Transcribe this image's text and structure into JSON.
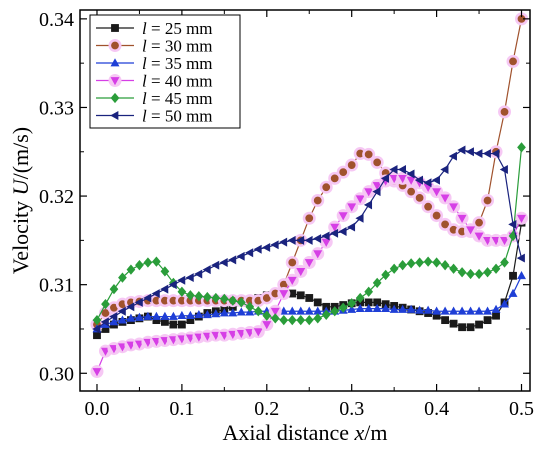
{
  "chart_data": {
    "type": "line",
    "title": "",
    "xlabel": {
      "prefix": "Axial distance ",
      "var": "x",
      "suffix": "/m"
    },
    "ylabel": {
      "prefix": "Velocity ",
      "var": "U",
      "suffix": "/(m/s)"
    },
    "xlim": [
      -0.02,
      0.51
    ],
    "ylim": [
      0.298,
      0.341
    ],
    "xticks": [
      0.0,
      0.1,
      0.2,
      0.3,
      0.4,
      0.5
    ],
    "xtick_labels": [
      "0.0",
      "0.1",
      "0.2",
      "0.3",
      "0.4",
      "0.5"
    ],
    "yticks": [
      0.3,
      0.31,
      0.32,
      0.33,
      0.34
    ],
    "ytick_labels": [
      "0.30",
      "0.31",
      "0.32",
      "0.33",
      "0.34"
    ],
    "grid": false,
    "legend_position": "top-left",
    "series": [
      {
        "name": "l = 25 mm",
        "var": "l",
        "value_text": " = 25 mm",
        "color": "#1a1a1a",
        "marker": "square",
        "highlight": false,
        "x": [
          0.0,
          0.01,
          0.02,
          0.03,
          0.04,
          0.05,
          0.06,
          0.07,
          0.08,
          0.09,
          0.1,
          0.11,
          0.12,
          0.13,
          0.14,
          0.15,
          0.16,
          0.17,
          0.18,
          0.19,
          0.2,
          0.21,
          0.22,
          0.23,
          0.24,
          0.25,
          0.26,
          0.27,
          0.28,
          0.29,
          0.3,
          0.31,
          0.32,
          0.33,
          0.34,
          0.35,
          0.36,
          0.37,
          0.38,
          0.39,
          0.4,
          0.41,
          0.42,
          0.43,
          0.44,
          0.45,
          0.46,
          0.47,
          0.48,
          0.49,
          0.5
        ],
        "y": [
          0.3043,
          0.305,
          0.3055,
          0.3058,
          0.306,
          0.3062,
          0.3064,
          0.306,
          0.3058,
          0.3055,
          0.3055,
          0.306,
          0.3064,
          0.3068,
          0.307,
          0.3072,
          0.3075,
          0.308,
          0.3082,
          0.3085,
          0.3088,
          0.3089,
          0.309,
          0.309,
          0.3088,
          0.3085,
          0.308,
          0.3075,
          0.3075,
          0.3077,
          0.3079,
          0.308,
          0.308,
          0.308,
          0.3078,
          0.3076,
          0.3074,
          0.3072,
          0.307,
          0.3068,
          0.3065,
          0.306,
          0.3056,
          0.3052,
          0.3052,
          0.3055,
          0.306,
          0.3065,
          0.308,
          0.311,
          0.317
        ]
      },
      {
        "name": "l = 30 mm",
        "var": "l",
        "value_text": " = 30 mm",
        "color": "#a0522d",
        "marker": "circle",
        "highlight": true,
        "x": [
          0.0,
          0.01,
          0.02,
          0.03,
          0.04,
          0.05,
          0.06,
          0.07,
          0.08,
          0.09,
          0.1,
          0.11,
          0.12,
          0.13,
          0.14,
          0.15,
          0.16,
          0.17,
          0.18,
          0.19,
          0.2,
          0.21,
          0.22,
          0.23,
          0.24,
          0.25,
          0.26,
          0.27,
          0.28,
          0.29,
          0.3,
          0.31,
          0.32,
          0.33,
          0.34,
          0.35,
          0.36,
          0.37,
          0.38,
          0.39,
          0.4,
          0.41,
          0.42,
          0.43,
          0.44,
          0.45,
          0.46,
          0.47,
          0.48,
          0.49,
          0.5
        ],
        "y": [
          0.3055,
          0.3068,
          0.3074,
          0.3078,
          0.308,
          0.3081,
          0.3082,
          0.3082,
          0.3082,
          0.3082,
          0.3082,
          0.3082,
          0.3082,
          0.3082,
          0.3082,
          0.3082,
          0.3082,
          0.3082,
          0.3082,
          0.3082,
          0.3085,
          0.309,
          0.31,
          0.3125,
          0.315,
          0.3175,
          0.3195,
          0.321,
          0.322,
          0.3227,
          0.3235,
          0.3248,
          0.3247,
          0.3238,
          0.3226,
          0.3217,
          0.3212,
          0.3205,
          0.3198,
          0.3188,
          0.3178,
          0.3168,
          0.3162,
          0.316,
          0.316,
          0.317,
          0.3195,
          0.325,
          0.3295,
          0.3352,
          0.34
        ]
      },
      {
        "name": "l = 35 mm",
        "var": "l",
        "value_text": " = 35 mm",
        "color": "#1f3fd6",
        "marker": "triangle-up",
        "highlight": false,
        "x": [
          0.0,
          0.01,
          0.02,
          0.03,
          0.04,
          0.05,
          0.06,
          0.07,
          0.08,
          0.09,
          0.1,
          0.11,
          0.12,
          0.13,
          0.14,
          0.15,
          0.16,
          0.17,
          0.18,
          0.19,
          0.2,
          0.21,
          0.22,
          0.23,
          0.24,
          0.25,
          0.26,
          0.27,
          0.28,
          0.29,
          0.3,
          0.31,
          0.32,
          0.33,
          0.34,
          0.35,
          0.36,
          0.37,
          0.38,
          0.39,
          0.4,
          0.41,
          0.42,
          0.43,
          0.44,
          0.45,
          0.46,
          0.47,
          0.48,
          0.49,
          0.5
        ],
        "y": [
          0.305,
          0.3055,
          0.3058,
          0.306,
          0.3062,
          0.3063,
          0.3064,
          0.3064,
          0.3064,
          0.3064,
          0.3065,
          0.3065,
          0.3066,
          0.3066,
          0.3067,
          0.3068,
          0.3068,
          0.3069,
          0.3069,
          0.307,
          0.307,
          0.307,
          0.307,
          0.307,
          0.307,
          0.307,
          0.307,
          0.307,
          0.307,
          0.3071,
          0.3072,
          0.3073,
          0.3073,
          0.3073,
          0.3073,
          0.3072,
          0.3072,
          0.3072,
          0.3071,
          0.3071,
          0.307,
          0.307,
          0.307,
          0.307,
          0.307,
          0.307,
          0.307,
          0.3072,
          0.3078,
          0.309,
          0.311
        ]
      },
      {
        "name": "l = 40 mm",
        "var": "l",
        "value_text": " = 40 mm",
        "color": "#d63fe6",
        "marker": "triangle-down",
        "highlight": true,
        "x": [
          0.0,
          0.01,
          0.02,
          0.03,
          0.04,
          0.05,
          0.06,
          0.07,
          0.08,
          0.09,
          0.1,
          0.11,
          0.12,
          0.13,
          0.14,
          0.15,
          0.16,
          0.17,
          0.18,
          0.19,
          0.2,
          0.21,
          0.22,
          0.23,
          0.24,
          0.25,
          0.26,
          0.27,
          0.28,
          0.29,
          0.3,
          0.31,
          0.32,
          0.33,
          0.34,
          0.35,
          0.36,
          0.37,
          0.38,
          0.39,
          0.4,
          0.41,
          0.42,
          0.43,
          0.44,
          0.45,
          0.46,
          0.47,
          0.48,
          0.49,
          0.5
        ],
        "y": [
          0.3002,
          0.3025,
          0.3028,
          0.303,
          0.3032,
          0.3033,
          0.3035,
          0.3036,
          0.3037,
          0.3038,
          0.3039,
          0.304,
          0.3041,
          0.3042,
          0.3043,
          0.3043,
          0.3044,
          0.3045,
          0.3046,
          0.3047,
          0.3055,
          0.307,
          0.309,
          0.3105,
          0.3115,
          0.3125,
          0.3135,
          0.3148,
          0.3165,
          0.3178,
          0.3188,
          0.3197,
          0.3205,
          0.3212,
          0.3217,
          0.322,
          0.322,
          0.3218,
          0.3215,
          0.321,
          0.3205,
          0.3198,
          0.3188,
          0.3175,
          0.3162,
          0.3155,
          0.315,
          0.315,
          0.315,
          0.3155,
          0.3175
        ]
      },
      {
        "name": "l = 45 mm",
        "var": "l",
        "value_text": " = 45 mm",
        "color": "#2a9d3a",
        "marker": "diamond",
        "highlight": false,
        "x": [
          0.0,
          0.01,
          0.02,
          0.03,
          0.04,
          0.05,
          0.06,
          0.07,
          0.08,
          0.09,
          0.1,
          0.11,
          0.12,
          0.13,
          0.14,
          0.15,
          0.16,
          0.17,
          0.18,
          0.19,
          0.2,
          0.21,
          0.22,
          0.23,
          0.24,
          0.25,
          0.26,
          0.27,
          0.28,
          0.29,
          0.3,
          0.31,
          0.32,
          0.33,
          0.34,
          0.35,
          0.36,
          0.37,
          0.38,
          0.39,
          0.4,
          0.41,
          0.42,
          0.43,
          0.44,
          0.45,
          0.46,
          0.47,
          0.48,
          0.49,
          0.5
        ],
        "y": [
          0.306,
          0.3078,
          0.3095,
          0.3108,
          0.3117,
          0.3122,
          0.3125,
          0.3126,
          0.3115,
          0.3102,
          0.3092,
          0.3088,
          0.3087,
          0.3086,
          0.3085,
          0.3084,
          0.3082,
          0.308,
          0.3075,
          0.307,
          0.3065,
          0.3062,
          0.306,
          0.306,
          0.306,
          0.306,
          0.3062,
          0.3066,
          0.307,
          0.3074,
          0.3079,
          0.3085,
          0.3092,
          0.3102,
          0.3111,
          0.3118,
          0.3122,
          0.3124,
          0.3125,
          0.3126,
          0.3125,
          0.3122,
          0.3118,
          0.3114,
          0.3112,
          0.3112,
          0.3114,
          0.3118,
          0.3125,
          0.3155,
          0.3255
        ]
      },
      {
        "name": "l = 50 mm",
        "var": "l",
        "value_text": " = 50 mm",
        "color": "#1a237e",
        "marker": "triangle-left",
        "highlight": false,
        "x": [
          0.0,
          0.01,
          0.02,
          0.03,
          0.04,
          0.05,
          0.06,
          0.07,
          0.08,
          0.09,
          0.1,
          0.11,
          0.12,
          0.13,
          0.14,
          0.15,
          0.16,
          0.17,
          0.18,
          0.19,
          0.2,
          0.21,
          0.22,
          0.23,
          0.24,
          0.25,
          0.26,
          0.27,
          0.28,
          0.29,
          0.3,
          0.31,
          0.32,
          0.33,
          0.34,
          0.35,
          0.36,
          0.37,
          0.38,
          0.39,
          0.4,
          0.41,
          0.42,
          0.43,
          0.44,
          0.45,
          0.46,
          0.47,
          0.48,
          0.49,
          0.5
        ],
        "y": [
          0.305,
          0.3058,
          0.3064,
          0.307,
          0.3075,
          0.308,
          0.3085,
          0.309,
          0.3095,
          0.31,
          0.3105,
          0.3108,
          0.3112,
          0.3117,
          0.3122,
          0.3125,
          0.3128,
          0.3132,
          0.3136,
          0.314,
          0.3142,
          0.3145,
          0.3148,
          0.315,
          0.315,
          0.315,
          0.3152,
          0.3155,
          0.3158,
          0.316,
          0.3165,
          0.3175,
          0.319,
          0.3205,
          0.322,
          0.323,
          0.323,
          0.3225,
          0.3218,
          0.3215,
          0.3218,
          0.323,
          0.3245,
          0.3252,
          0.325,
          0.3248,
          0.3248,
          0.3248,
          0.323,
          0.3168,
          0.313
        ]
      }
    ]
  }
}
